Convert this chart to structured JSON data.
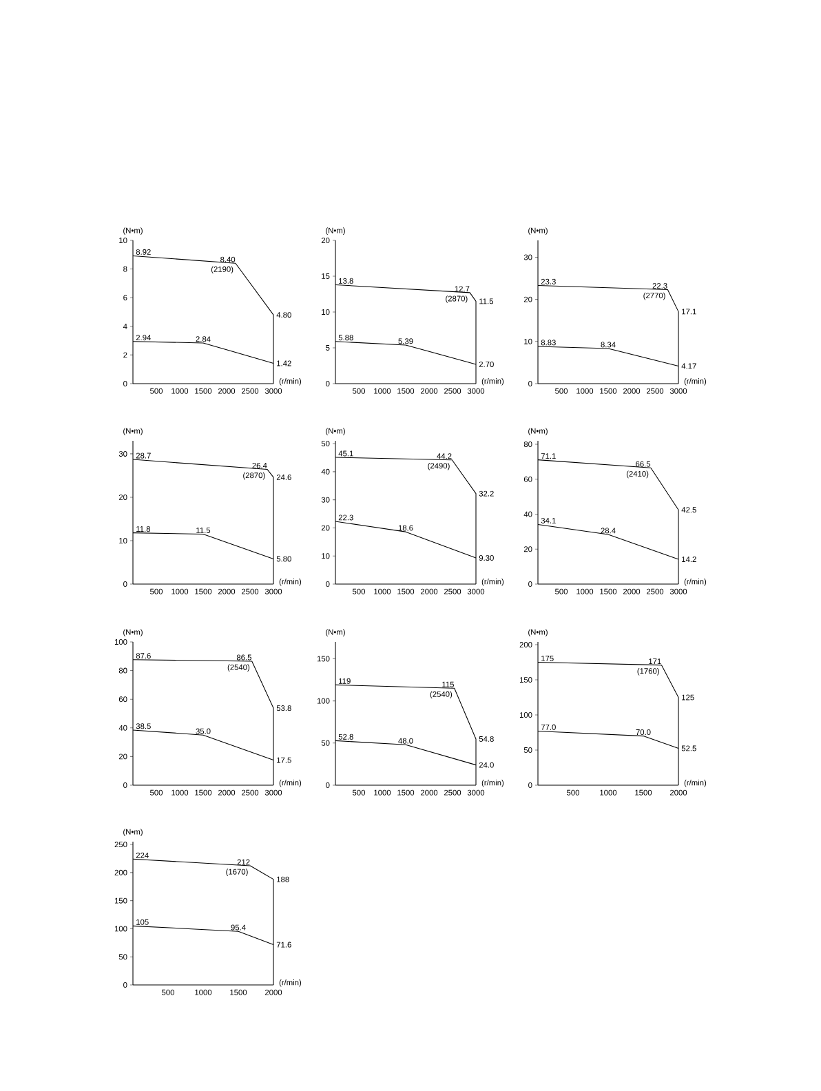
{
  "chart_data": [
    {
      "type": "line",
      "xlabel": "(r/min)",
      "ylabel": "(N•m)",
      "xlim": [
        0,
        3000
      ],
      "xticks": [
        500,
        1000,
        1500,
        2000,
        2500,
        3000
      ],
      "ylim": [
        0,
        10
      ],
      "yticks": [
        0,
        2,
        4,
        6,
        8,
        10
      ],
      "annotations": [
        {
          "text": "(2190)",
          "x": 2190,
          "y": 8.4
        }
      ],
      "series": [
        {
          "color": "#000000",
          "x": [
            0,
            2190,
            3000,
            3000
          ],
          "values": [
            8.92,
            8.4,
            4.8,
            0
          ],
          "value_labels": [
            "8.92",
            "8.40",
            "4.80",
            null
          ]
        },
        {
          "color": "#000000",
          "x": [
            0,
            1500,
            3000
          ],
          "values": [
            2.94,
            2.84,
            1.42
          ],
          "value_labels": [
            "2.94",
            "2.84",
            "1.42"
          ]
        }
      ]
    },
    {
      "type": "line",
      "xlabel": "(r/min)",
      "ylabel": "(N•m)",
      "xlim": [
        0,
        3000
      ],
      "xticks": [
        500,
        1000,
        1500,
        2000,
        2500,
        3000
      ],
      "ylim": [
        0,
        20
      ],
      "yticks": [
        0,
        5,
        10,
        15,
        20
      ],
      "annotations": [
        {
          "text": "(2870)",
          "x": 2870,
          "y": 12.7
        }
      ],
      "series": [
        {
          "color": "#000000",
          "x": [
            0,
            2870,
            3000,
            3000
          ],
          "values": [
            13.8,
            12.7,
            11.5,
            0
          ],
          "value_labels": [
            "13.8",
            "12.7",
            "11.5",
            null
          ]
        },
        {
          "color": "#000000",
          "x": [
            0,
            1500,
            3000
          ],
          "values": [
            5.88,
            5.39,
            2.7
          ],
          "value_labels": [
            "5.88",
            "5.39",
            "2.70"
          ]
        }
      ]
    },
    {
      "type": "line",
      "xlabel": "(r/min)",
      "ylabel": "(N•m)",
      "xlim": [
        0,
        3000
      ],
      "xticks": [
        500,
        1000,
        1500,
        2000,
        2500,
        3000
      ],
      "ylim": [
        0,
        34
      ],
      "yticks": [
        0,
        10,
        20,
        30
      ],
      "annotations": [
        {
          "text": "(2770)",
          "x": 2770,
          "y": 22.3
        }
      ],
      "series": [
        {
          "color": "#000000",
          "x": [
            0,
            2770,
            3000,
            3000
          ],
          "values": [
            23.3,
            22.3,
            17.1,
            0
          ],
          "value_labels": [
            "23.3",
            "22.3",
            "17.1",
            null
          ]
        },
        {
          "color": "#000000",
          "x": [
            0,
            1500,
            3000
          ],
          "values": [
            8.83,
            8.34,
            4.17
          ],
          "value_labels": [
            "8.83",
            "8.34",
            "4.17"
          ]
        }
      ]
    },
    {
      "type": "line",
      "xlabel": "(r/min)",
      "ylabel": "(N•m)",
      "xlim": [
        0,
        3000
      ],
      "xticks": [
        500,
        1000,
        1500,
        2000,
        2500,
        3000
      ],
      "ylim": [
        0,
        33
      ],
      "yticks": [
        0,
        10,
        20,
        30
      ],
      "annotations": [
        {
          "text": "(2870)",
          "x": 2870,
          "y": 26.4
        }
      ],
      "series": [
        {
          "color": "#000000",
          "x": [
            0,
            2870,
            3000,
            3000
          ],
          "values": [
            28.7,
            26.4,
            24.6,
            0
          ],
          "value_labels": [
            "28.7",
            "26.4",
            "24.6",
            null
          ]
        },
        {
          "color": "#000000",
          "x": [
            0,
            1500,
            3000
          ],
          "values": [
            11.8,
            11.5,
            5.8
          ],
          "value_labels": [
            "11.8",
            "11.5",
            "5.80"
          ]
        }
      ]
    },
    {
      "type": "line",
      "xlabel": "(r/min)",
      "ylabel": "(N•m)",
      "xlim": [
        0,
        3000
      ],
      "xticks": [
        500,
        1000,
        1500,
        2000,
        2500,
        3000
      ],
      "ylim": [
        0,
        51
      ],
      "yticks": [
        0,
        10,
        20,
        30,
        40,
        50
      ],
      "annotations": [
        {
          "text": "(2490)",
          "x": 2490,
          "y": 44.2
        }
      ],
      "series": [
        {
          "color": "#000000",
          "x": [
            0,
            2490,
            3000,
            3000
          ],
          "values": [
            45.1,
            44.2,
            32.2,
            0
          ],
          "value_labels": [
            "45.1",
            "44.2",
            "32.2",
            null
          ]
        },
        {
          "color": "#000000",
          "x": [
            0,
            1500,
            3000
          ],
          "values": [
            22.3,
            18.6,
            9.3
          ],
          "value_labels": [
            "22.3",
            "18.6",
            "9.30"
          ]
        }
      ]
    },
    {
      "type": "line",
      "xlabel": "(r/min)",
      "ylabel": "(N•m)",
      "xlim": [
        0,
        3000
      ],
      "xticks": [
        500,
        1000,
        1500,
        2000,
        2500,
        3000
      ],
      "ylim": [
        0,
        82
      ],
      "yticks": [
        0,
        20,
        40,
        60,
        80
      ],
      "annotations": [
        {
          "text": "(2410)",
          "x": 2410,
          "y": 66.5
        }
      ],
      "series": [
        {
          "color": "#000000",
          "x": [
            0,
            2410,
            3000,
            3000
          ],
          "values": [
            71.1,
            66.5,
            42.5,
            0
          ],
          "value_labels": [
            "71.1",
            "66.5",
            "42.5",
            null
          ]
        },
        {
          "color": "#000000",
          "x": [
            0,
            1500,
            3000
          ],
          "values": [
            34.1,
            28.4,
            14.2
          ],
          "value_labels": [
            "34.1",
            "28.4",
            "14.2"
          ]
        }
      ]
    },
    {
      "type": "line",
      "xlabel": "(r/min)",
      "ylabel": "(N•m)",
      "xlim": [
        0,
        3000
      ],
      "xticks": [
        500,
        1000,
        1500,
        2000,
        2500,
        3000
      ],
      "ylim": [
        0,
        100
      ],
      "yticks": [
        0,
        20,
        40,
        60,
        80,
        100
      ],
      "annotations": [
        {
          "text": "(2540)",
          "x": 2540,
          "y": 86.5
        }
      ],
      "series": [
        {
          "color": "#000000",
          "x": [
            0,
            2540,
            3000,
            3000
          ],
          "values": [
            87.6,
            86.5,
            53.8,
            0
          ],
          "value_labels": [
            "87.6",
            "86.5",
            "53.8",
            null
          ]
        },
        {
          "color": "#000000",
          "x": [
            0,
            1500,
            3000
          ],
          "values": [
            38.5,
            35.0,
            17.5
          ],
          "value_labels": [
            "38.5",
            "35.0",
            "17.5"
          ]
        }
      ]
    },
    {
      "type": "line",
      "xlabel": "(r/min)",
      "ylabel": "(N•m)",
      "xlim": [
        0,
        3000
      ],
      "xticks": [
        500,
        1000,
        1500,
        2000,
        2500,
        3000
      ],
      "ylim": [
        0,
        170
      ],
      "yticks": [
        0,
        50,
        100,
        150
      ],
      "annotations": [
        {
          "text": "(2540)",
          "x": 2540,
          "y": 115
        }
      ],
      "series": [
        {
          "color": "#000000",
          "x": [
            0,
            2540,
            3000,
            3000
          ],
          "values": [
            119,
            115,
            54.8,
            0
          ],
          "value_labels": [
            "119",
            "115",
            "54.8",
            null
          ]
        },
        {
          "color": "#000000",
          "x": [
            0,
            1500,
            3000
          ],
          "values": [
            52.8,
            48.0,
            24.0
          ],
          "value_labels": [
            "52.8",
            "48.0",
            "24.0"
          ]
        }
      ]
    },
    {
      "type": "line",
      "xlabel": "(r/min)",
      "ylabel": "(N•m)",
      "xlim": [
        0,
        2000
      ],
      "xticks": [
        500,
        1000,
        1500,
        2000
      ],
      "ylim": [
        0,
        204
      ],
      "yticks": [
        0,
        50,
        100,
        150,
        200
      ],
      "annotations": [
        {
          "text": "(1760)",
          "x": 1760,
          "y": 171
        }
      ],
      "series": [
        {
          "color": "#000000",
          "x": [
            0,
            1760,
            2000,
            2000
          ],
          "values": [
            175,
            171,
            125,
            0
          ],
          "value_labels": [
            "175",
            "171",
            "125",
            null
          ]
        },
        {
          "color": "#000000",
          "x": [
            0,
            1500,
            2000
          ],
          "values": [
            77.0,
            70.0,
            52.5
          ],
          "value_labels": [
            "77.0",
            "70.0",
            "52.5"
          ]
        }
      ]
    },
    {
      "type": "line",
      "xlabel": "(r/min)",
      "ylabel": "(N•m)",
      "xlim": [
        0,
        2000
      ],
      "xticks": [
        500,
        1000,
        1500,
        2000
      ],
      "ylim": [
        0,
        255
      ],
      "yticks": [
        0,
        50,
        100,
        150,
        200,
        250
      ],
      "annotations": [
        {
          "text": "(1670)",
          "x": 1670,
          "y": 212
        }
      ],
      "series": [
        {
          "color": "#000000",
          "x": [
            0,
            1670,
            2000,
            2000
          ],
          "values": [
            224,
            212,
            188,
            0
          ],
          "value_labels": [
            "224",
            "212",
            "188",
            null
          ]
        },
        {
          "color": "#000000",
          "x": [
            0,
            1500,
            2000
          ],
          "values": [
            105,
            95.4,
            71.6
          ],
          "value_labels": [
            "105",
            "95.4",
            "71.6"
          ]
        }
      ]
    }
  ]
}
